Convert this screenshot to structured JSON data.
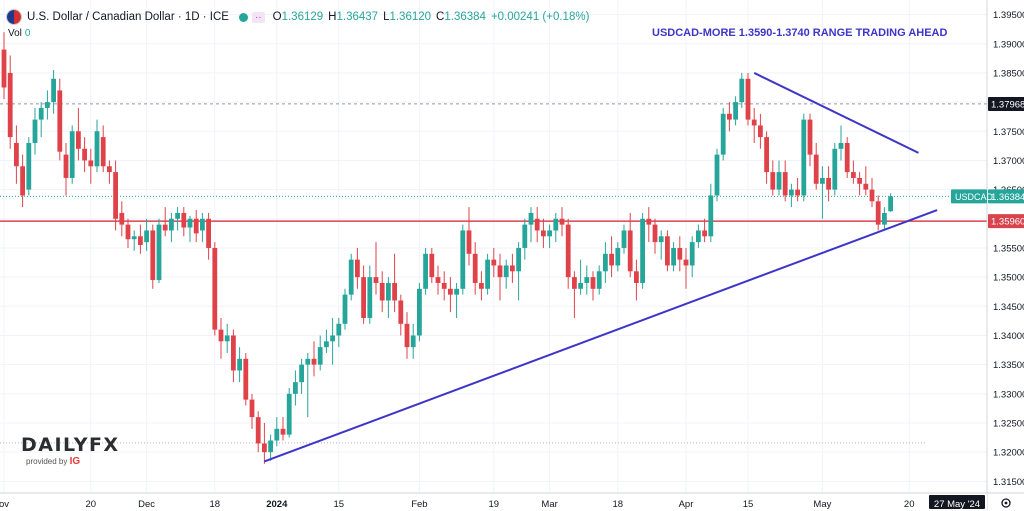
{
  "header": {
    "title": "U.S. Dollar / Canadian Dollar · 1D · ICE",
    "ohlc_o_label": "O",
    "ohlc_o": "1.36129",
    "ohlc_h_label": "H",
    "ohlc_h": "1.36437",
    "ohlc_l_label": "L",
    "ohlc_l": "1.36120",
    "ohlc_c_label": "C",
    "ohlc_c": "1.36384",
    "change": "+0.00241 (+0.18%)",
    "vol_label": "Vol",
    "vol_value": "0"
  },
  "annotation": "USDCAD-MORE 1.3590-1.3740 RANGE TRADING AHEAD",
  "logo": {
    "text_a": "DAILY",
    "text_b": "FX",
    "sub": "provided by",
    "sub_brand": "IG"
  },
  "colors": {
    "up": "#26a69a",
    "down": "#e0424a",
    "trendline": "#3d35c8",
    "support": "#d9434b",
    "label_dark": "#131722"
  },
  "chart_data": {
    "type": "candlestick",
    "ylim": [
      1.313,
      1.3975
    ],
    "y_ticks": [
      "1.31500",
      "1.32000",
      "1.32500",
      "1.33000",
      "1.33500",
      "1.34000",
      "1.34500",
      "1.35000",
      "1.35500",
      "1.36000",
      "1.36500",
      "1.37000",
      "1.37500",
      "1.38000",
      "1.38500",
      "1.39000",
      "1.39500"
    ],
    "x_ticks": [
      {
        "label": "ov",
        "i": 0
      },
      {
        "label": "20",
        "i": 14
      },
      {
        "label": "Dec",
        "i": 23
      },
      {
        "label": "18",
        "i": 34
      },
      {
        "label": "2024",
        "i": 44,
        "bold": true
      },
      {
        "label": "15",
        "i": 54
      },
      {
        "label": "Feb",
        "i": 67
      },
      {
        "label": "19",
        "i": 79
      },
      {
        "label": "Mar",
        "i": 88
      },
      {
        "label": "18",
        "i": 99
      },
      {
        "label": "Apr",
        "i": 110
      },
      {
        "label": "15",
        "i": 120
      },
      {
        "label": "May",
        "i": 132
      },
      {
        "label": "20",
        "i": 146
      }
    ],
    "cursor_date_label": "27 May '24",
    "symbol_label": "USDCAD",
    "price_labels": [
      {
        "value": 1.37968,
        "text": "1.37968",
        "style": "dark"
      },
      {
        "value": 1.36384,
        "text": "1.36384",
        "style": "symbol"
      },
      {
        "value": 1.3596,
        "text": "1.35960",
        "style": "support"
      }
    ],
    "reference_lines": {
      "support": 1.3596,
      "dashed_top": 1.3797,
      "current": 1.36384,
      "dotted_low": 1.3216
    },
    "trendlines": [
      {
        "name": "rising-support",
        "from": {
          "i": 42,
          "y": 1.3184
        },
        "to": {
          "i": 150.5,
          "y": 1.3615
        }
      },
      {
        "name": "falling-resistance",
        "from": {
          "i": 121,
          "y": 1.385
        },
        "to": {
          "i": 147.5,
          "y": 1.3713
        }
      }
    ],
    "candles": [
      {
        "o": 1.389,
        "h": 1.392,
        "l": 1.3805,
        "c": 1.3825
      },
      {
        "o": 1.385,
        "h": 1.388,
        "l": 1.372,
        "c": 1.374
      },
      {
        "o": 1.373,
        "h": 1.376,
        "l": 1.366,
        "c": 1.369
      },
      {
        "o": 1.369,
        "h": 1.371,
        "l": 1.362,
        "c": 1.364
      },
      {
        "o": 1.365,
        "h": 1.374,
        "l": 1.364,
        "c": 1.373
      },
      {
        "o": 1.373,
        "h": 1.379,
        "l": 1.371,
        "c": 1.377
      },
      {
        "o": 1.377,
        "h": 1.38,
        "l": 1.374,
        "c": 1.379
      },
      {
        "o": 1.379,
        "h": 1.382,
        "l": 1.377,
        "c": 1.38
      },
      {
        "o": 1.38,
        "h": 1.3855,
        "l": 1.378,
        "c": 1.384
      },
      {
        "o": 1.382,
        "h": 1.384,
        "l": 1.37,
        "c": 1.3715
      },
      {
        "o": 1.371,
        "h": 1.373,
        "l": 1.364,
        "c": 1.367
      },
      {
        "o": 1.367,
        "h": 1.376,
        "l": 1.366,
        "c": 1.375
      },
      {
        "o": 1.375,
        "h": 1.379,
        "l": 1.37,
        "c": 1.372
      },
      {
        "o": 1.372,
        "h": 1.374,
        "l": 1.368,
        "c": 1.37
      },
      {
        "o": 1.37,
        "h": 1.372,
        "l": 1.366,
        "c": 1.369
      },
      {
        "o": 1.369,
        "h": 1.377,
        "l": 1.368,
        "c": 1.375
      },
      {
        "o": 1.374,
        "h": 1.376,
        "l": 1.368,
        "c": 1.369
      },
      {
        "o": 1.369,
        "h": 1.37,
        "l": 1.366,
        "c": 1.368
      },
      {
        "o": 1.368,
        "h": 1.37,
        "l": 1.358,
        "c": 1.36
      },
      {
        "o": 1.361,
        "h": 1.363,
        "l": 1.357,
        "c": 1.359
      },
      {
        "o": 1.359,
        "h": 1.36,
        "l": 1.355,
        "c": 1.3565
      },
      {
        "o": 1.3565,
        "h": 1.358,
        "l": 1.3545,
        "c": 1.357
      },
      {
        "o": 1.357,
        "h": 1.359,
        "l": 1.354,
        "c": 1.3555
      },
      {
        "o": 1.356,
        "h": 1.36,
        "l": 1.3545,
        "c": 1.358
      },
      {
        "o": 1.358,
        "h": 1.359,
        "l": 1.348,
        "c": 1.3495
      },
      {
        "o": 1.3495,
        "h": 1.36,
        "l": 1.349,
        "c": 1.359
      },
      {
        "o": 1.359,
        "h": 1.362,
        "l": 1.357,
        "c": 1.358
      },
      {
        "o": 1.358,
        "h": 1.361,
        "l": 1.356,
        "c": 1.36
      },
      {
        "o": 1.36,
        "h": 1.362,
        "l": 1.358,
        "c": 1.361
      },
      {
        "o": 1.361,
        "h": 1.362,
        "l": 1.357,
        "c": 1.3585
      },
      {
        "o": 1.3585,
        "h": 1.3605,
        "l": 1.356,
        "c": 1.36
      },
      {
        "o": 1.36,
        "h": 1.3615,
        "l": 1.356,
        "c": 1.3575
      },
      {
        "o": 1.358,
        "h": 1.361,
        "l": 1.356,
        "c": 1.36
      },
      {
        "o": 1.36,
        "h": 1.361,
        "l": 1.353,
        "c": 1.355
      },
      {
        "o": 1.355,
        "h": 1.356,
        "l": 1.34,
        "c": 1.341
      },
      {
        "o": 1.341,
        "h": 1.343,
        "l": 1.336,
        "c": 1.339
      },
      {
        "o": 1.339,
        "h": 1.342,
        "l": 1.337,
        "c": 1.34
      },
      {
        "o": 1.34,
        "h": 1.341,
        "l": 1.332,
        "c": 1.334
      },
      {
        "o": 1.334,
        "h": 1.338,
        "l": 1.332,
        "c": 1.336
      },
      {
        "o": 1.336,
        "h": 1.337,
        "l": 1.328,
        "c": 1.329
      },
      {
        "o": 1.329,
        "h": 1.33,
        "l": 1.324,
        "c": 1.326
      },
      {
        "o": 1.326,
        "h": 1.327,
        "l": 1.32,
        "c": 1.3215
      },
      {
        "o": 1.3215,
        "h": 1.325,
        "l": 1.318,
        "c": 1.32
      },
      {
        "o": 1.32,
        "h": 1.323,
        "l": 1.3185,
        "c": 1.322
      },
      {
        "o": 1.322,
        "h": 1.326,
        "l": 1.321,
        "c": 1.324
      },
      {
        "o": 1.324,
        "h": 1.326,
        "l": 1.322,
        "c": 1.323
      },
      {
        "o": 1.323,
        "h": 1.331,
        "l": 1.3225,
        "c": 1.33
      },
      {
        "o": 1.33,
        "h": 1.334,
        "l": 1.328,
        "c": 1.332
      },
      {
        "o": 1.332,
        "h": 1.336,
        "l": 1.33,
        "c": 1.335
      },
      {
        "o": 1.335,
        "h": 1.337,
        "l": 1.326,
        "c": 1.336
      },
      {
        "o": 1.336,
        "h": 1.339,
        "l": 1.333,
        "c": 1.335
      },
      {
        "o": 1.335,
        "h": 1.34,
        "l": 1.334,
        "c": 1.338
      },
      {
        "o": 1.338,
        "h": 1.341,
        "l": 1.337,
        "c": 1.339
      },
      {
        "o": 1.339,
        "h": 1.343,
        "l": 1.335,
        "c": 1.34
      },
      {
        "o": 1.34,
        "h": 1.343,
        "l": 1.338,
        "c": 1.342
      },
      {
        "o": 1.342,
        "h": 1.348,
        "l": 1.341,
        "c": 1.347
      },
      {
        "o": 1.347,
        "h": 1.354,
        "l": 1.346,
        "c": 1.353
      },
      {
        "o": 1.353,
        "h": 1.355,
        "l": 1.348,
        "c": 1.35
      },
      {
        "o": 1.35,
        "h": 1.352,
        "l": 1.342,
        "c": 1.343
      },
      {
        "o": 1.343,
        "h": 1.352,
        "l": 1.342,
        "c": 1.35
      },
      {
        "o": 1.35,
        "h": 1.356,
        "l": 1.347,
        "c": 1.349
      },
      {
        "o": 1.349,
        "h": 1.351,
        "l": 1.344,
        "c": 1.346
      },
      {
        "o": 1.346,
        "h": 1.35,
        "l": 1.343,
        "c": 1.349
      },
      {
        "o": 1.349,
        "h": 1.354,
        "l": 1.344,
        "c": 1.346
      },
      {
        "o": 1.346,
        "h": 1.347,
        "l": 1.34,
        "c": 1.342
      },
      {
        "o": 1.342,
        "h": 1.344,
        "l": 1.336,
        "c": 1.338
      },
      {
        "o": 1.338,
        "h": 1.342,
        "l": 1.336,
        "c": 1.34
      },
      {
        "o": 1.34,
        "h": 1.349,
        "l": 1.339,
        "c": 1.348
      },
      {
        "o": 1.348,
        "h": 1.355,
        "l": 1.347,
        "c": 1.354
      },
      {
        "o": 1.354,
        "h": 1.355,
        "l": 1.349,
        "c": 1.35
      },
      {
        "o": 1.35,
        "h": 1.352,
        "l": 1.347,
        "c": 1.349
      },
      {
        "o": 1.349,
        "h": 1.351,
        "l": 1.346,
        "c": 1.348
      },
      {
        "o": 1.348,
        "h": 1.35,
        "l": 1.344,
        "c": 1.347
      },
      {
        "o": 1.347,
        "h": 1.349,
        "l": 1.343,
        "c": 1.348
      },
      {
        "o": 1.348,
        "h": 1.359,
        "l": 1.347,
        "c": 1.358
      },
      {
        "o": 1.358,
        "h": 1.362,
        "l": 1.352,
        "c": 1.354
      },
      {
        "o": 1.354,
        "h": 1.356,
        "l": 1.347,
        "c": 1.349
      },
      {
        "o": 1.349,
        "h": 1.351,
        "l": 1.346,
        "c": 1.348
      },
      {
        "o": 1.348,
        "h": 1.354,
        "l": 1.347,
        "c": 1.353
      },
      {
        "o": 1.353,
        "h": 1.355,
        "l": 1.35,
        "c": 1.352
      },
      {
        "o": 1.352,
        "h": 1.354,
        "l": 1.346,
        "c": 1.35
      },
      {
        "o": 1.35,
        "h": 1.353,
        "l": 1.348,
        "c": 1.352
      },
      {
        "o": 1.352,
        "h": 1.354,
        "l": 1.349,
        "c": 1.351
      },
      {
        "o": 1.351,
        "h": 1.356,
        "l": 1.346,
        "c": 1.355
      },
      {
        "o": 1.355,
        "h": 1.36,
        "l": 1.353,
        "c": 1.359
      },
      {
        "o": 1.359,
        "h": 1.362,
        "l": 1.356,
        "c": 1.361
      },
      {
        "o": 1.36,
        "h": 1.362,
        "l": 1.356,
        "c": 1.358
      },
      {
        "o": 1.358,
        "h": 1.36,
        "l": 1.355,
        "c": 1.357
      },
      {
        "o": 1.357,
        "h": 1.359,
        "l": 1.355,
        "c": 1.358
      },
      {
        "o": 1.358,
        "h": 1.361,
        "l": 1.356,
        "c": 1.36
      },
      {
        "o": 1.36,
        "h": 1.362,
        "l": 1.357,
        "c": 1.359
      },
      {
        "o": 1.359,
        "h": 1.36,
        "l": 1.348,
        "c": 1.35
      },
      {
        "o": 1.35,
        "h": 1.351,
        "l": 1.343,
        "c": 1.348
      },
      {
        "o": 1.348,
        "h": 1.353,
        "l": 1.347,
        "c": 1.349
      },
      {
        "o": 1.349,
        "h": 1.352,
        "l": 1.347,
        "c": 1.35
      },
      {
        "o": 1.35,
        "h": 1.351,
        "l": 1.346,
        "c": 1.348
      },
      {
        "o": 1.348,
        "h": 1.352,
        "l": 1.347,
        "c": 1.351
      },
      {
        "o": 1.351,
        "h": 1.356,
        "l": 1.349,
        "c": 1.354
      },
      {
        "o": 1.354,
        "h": 1.357,
        "l": 1.35,
        "c": 1.352
      },
      {
        "o": 1.352,
        "h": 1.356,
        "l": 1.351,
        "c": 1.355
      },
      {
        "o": 1.355,
        "h": 1.359,
        "l": 1.354,
        "c": 1.358
      },
      {
        "o": 1.358,
        "h": 1.361,
        "l": 1.35,
        "c": 1.351
      },
      {
        "o": 1.351,
        "h": 1.353,
        "l": 1.346,
        "c": 1.349
      },
      {
        "o": 1.349,
        "h": 1.361,
        "l": 1.348,
        "c": 1.36
      },
      {
        "o": 1.36,
        "h": 1.362,
        "l": 1.356,
        "c": 1.359
      },
      {
        "o": 1.359,
        "h": 1.36,
        "l": 1.354,
        "c": 1.356
      },
      {
        "o": 1.356,
        "h": 1.358,
        "l": 1.353,
        "c": 1.357
      },
      {
        "o": 1.357,
        "h": 1.358,
        "l": 1.351,
        "c": 1.352
      },
      {
        "o": 1.352,
        "h": 1.356,
        "l": 1.351,
        "c": 1.355
      },
      {
        "o": 1.355,
        "h": 1.357,
        "l": 1.351,
        "c": 1.353
      },
      {
        "o": 1.353,
        "h": 1.355,
        "l": 1.348,
        "c": 1.352
      },
      {
        "o": 1.352,
        "h": 1.357,
        "l": 1.35,
        "c": 1.356
      },
      {
        "o": 1.356,
        "h": 1.359,
        "l": 1.355,
        "c": 1.358
      },
      {
        "o": 1.358,
        "h": 1.36,
        "l": 1.356,
        "c": 1.357
      },
      {
        "o": 1.357,
        "h": 1.366,
        "l": 1.356,
        "c": 1.364
      },
      {
        "o": 1.364,
        "h": 1.372,
        "l": 1.363,
        "c": 1.371
      },
      {
        "o": 1.371,
        "h": 1.379,
        "l": 1.37,
        "c": 1.378
      },
      {
        "o": 1.378,
        "h": 1.38,
        "l": 1.375,
        "c": 1.377
      },
      {
        "o": 1.377,
        "h": 1.381,
        "l": 1.376,
        "c": 1.38
      },
      {
        "o": 1.38,
        "h": 1.385,
        "l": 1.379,
        "c": 1.384
      },
      {
        "o": 1.384,
        "h": 1.385,
        "l": 1.376,
        "c": 1.377
      },
      {
        "o": 1.377,
        "h": 1.379,
        "l": 1.373,
        "c": 1.376
      },
      {
        "o": 1.376,
        "h": 1.378,
        "l": 1.372,
        "c": 1.374
      },
      {
        "o": 1.374,
        "h": 1.375,
        "l": 1.366,
        "c": 1.368
      },
      {
        "o": 1.368,
        "h": 1.37,
        "l": 1.364,
        "c": 1.365
      },
      {
        "o": 1.365,
        "h": 1.37,
        "l": 1.364,
        "c": 1.368
      },
      {
        "o": 1.368,
        "h": 1.37,
        "l": 1.363,
        "c": 1.364
      },
      {
        "o": 1.364,
        "h": 1.366,
        "l": 1.362,
        "c": 1.365
      },
      {
        "o": 1.365,
        "h": 1.367,
        "l": 1.363,
        "c": 1.364
      },
      {
        "o": 1.364,
        "h": 1.378,
        "l": 1.363,
        "c": 1.377
      },
      {
        "o": 1.377,
        "h": 1.378,
        "l": 1.369,
        "c": 1.371
      },
      {
        "o": 1.371,
        "h": 1.373,
        "l": 1.365,
        "c": 1.366
      },
      {
        "o": 1.366,
        "h": 1.369,
        "l": 1.36,
        "c": 1.367
      },
      {
        "o": 1.367,
        "h": 1.369,
        "l": 1.363,
        "c": 1.365
      },
      {
        "o": 1.365,
        "h": 1.373,
        "l": 1.364,
        "c": 1.372
      },
      {
        "o": 1.372,
        "h": 1.376,
        "l": 1.37,
        "c": 1.373
      },
      {
        "o": 1.373,
        "h": 1.374,
        "l": 1.367,
        "c": 1.368
      },
      {
        "o": 1.368,
        "h": 1.37,
        "l": 1.366,
        "c": 1.367
      },
      {
        "o": 1.367,
        "h": 1.368,
        "l": 1.364,
        "c": 1.366
      },
      {
        "o": 1.366,
        "h": 1.369,
        "l": 1.364,
        "c": 1.365
      },
      {
        "o": 1.365,
        "h": 1.367,
        "l": 1.362,
        "c": 1.363
      },
      {
        "o": 1.363,
        "h": 1.364,
        "l": 1.358,
        "c": 1.359
      },
      {
        "o": 1.359,
        "h": 1.362,
        "l": 1.358,
        "c": 1.361
      },
      {
        "o": 1.36129,
        "h": 1.36437,
        "l": 1.3612,
        "c": 1.36384
      }
    ]
  }
}
